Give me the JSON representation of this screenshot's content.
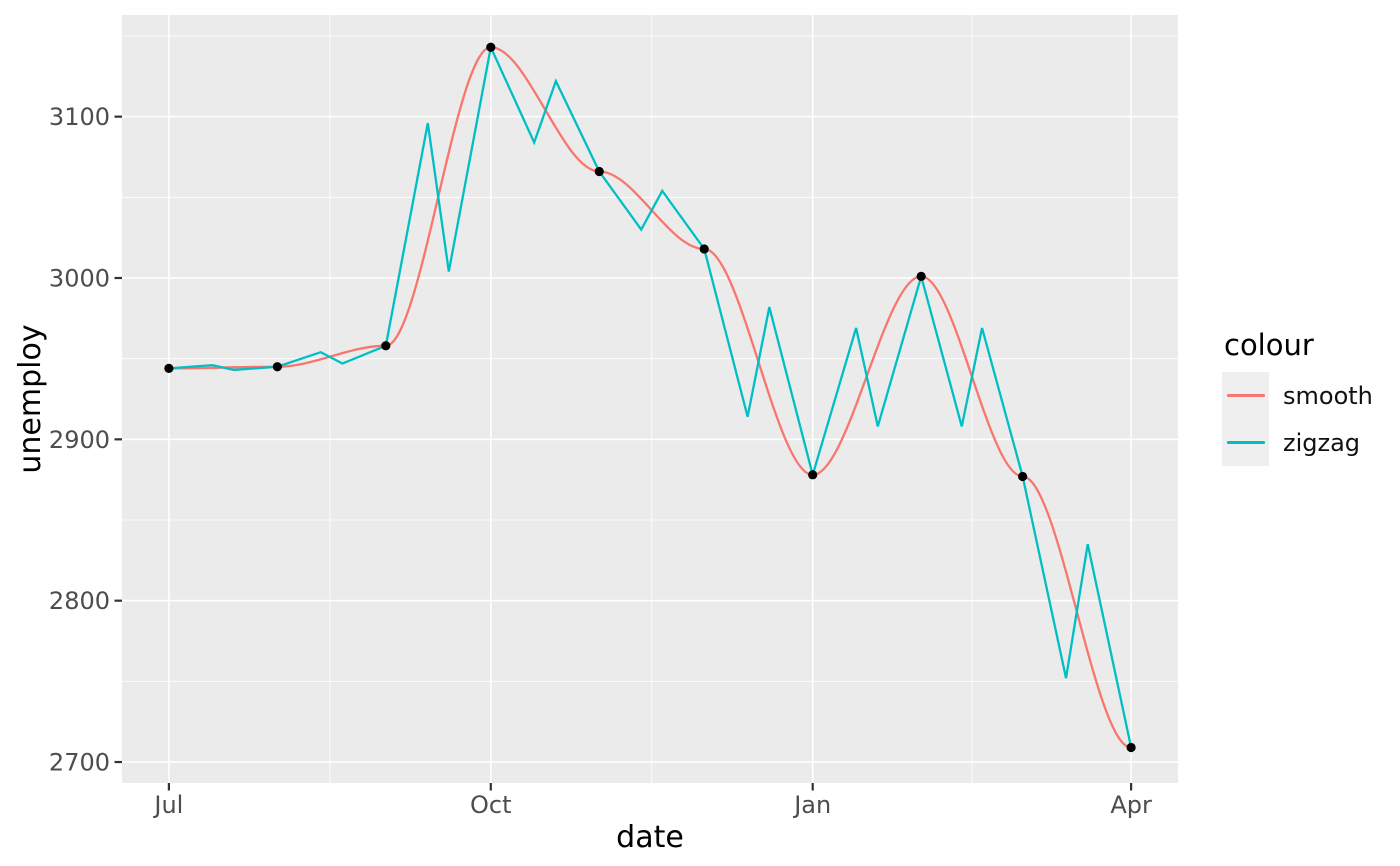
{
  "chart_data": {
    "type": "line",
    "title": "",
    "xlabel": "date",
    "ylabel": "unemploy",
    "grid": true,
    "panel_bg": "#EBEBEB",
    "grid_color": "#FFFFFF",
    "tick_color": "#333333",
    "tick_label_color": "#4D4D4D",
    "x_axis": {
      "unit": "days since Jul 1",
      "domain_days": [
        -13.4,
        288.4
      ],
      "tick_days": [
        0,
        92,
        184,
        275
      ],
      "tick_labels": [
        "Jul",
        "Oct",
        "Jan",
        "Apr"
      ],
      "minor_days": [
        46,
        138,
        229.5
      ]
    },
    "y_axis": {
      "domain": [
        2687,
        3163
      ],
      "ticks": [
        2700,
        2800,
        2900,
        3000,
        3100
      ],
      "tick_labels": [
        "2700",
        "2800",
        "2900",
        "3000",
        "3100"
      ],
      "minor": [
        2750,
        2850,
        2950,
        3050,
        3150
      ]
    },
    "legend": {
      "title": "colour",
      "position": "right",
      "key_fill": "#EFEFEF"
    },
    "points": {
      "color": "#000000",
      "days": [
        0,
        31,
        62,
        92,
        123,
        153,
        184,
        215,
        244,
        275
      ],
      "values": [
        2944,
        2945,
        2958,
        3143,
        3066,
        3018,
        2878,
        3001,
        2877,
        2709
      ]
    },
    "series": [
      {
        "name": "smooth",
        "color": "#F8766D",
        "interpolation": "smoothstep",
        "days": [
          0,
          31,
          62,
          92,
          123,
          153,
          184,
          215,
          244,
          275
        ],
        "values": [
          2944,
          2945,
          2958,
          3143,
          3066,
          3018,
          2878,
          3001,
          2877,
          2709
        ]
      },
      {
        "name": "zigzag",
        "color": "#00BFC4",
        "interpolation": "linear",
        "days": [
          0,
          12.4,
          18.6,
          31,
          43.4,
          49.6,
          62,
          74,
          80,
          92,
          104.4,
          110.6,
          123,
          135,
          141,
          153,
          165.4,
          171.6,
          184,
          196.4,
          202.6,
          215,
          226.6,
          232.4,
          244,
          256.4,
          262.6,
          275
        ],
        "values": [
          2944,
          2946,
          2943,
          2945,
          2954,
          2947,
          2958,
          3096,
          3004,
          3143,
          3084,
          3122,
          3066,
          3030,
          3054,
          3018,
          2914,
          2982,
          2878,
          2969,
          2908,
          3001,
          2908,
          2969,
          2877,
          2752,
          2835,
          2709
        ]
      }
    ]
  }
}
